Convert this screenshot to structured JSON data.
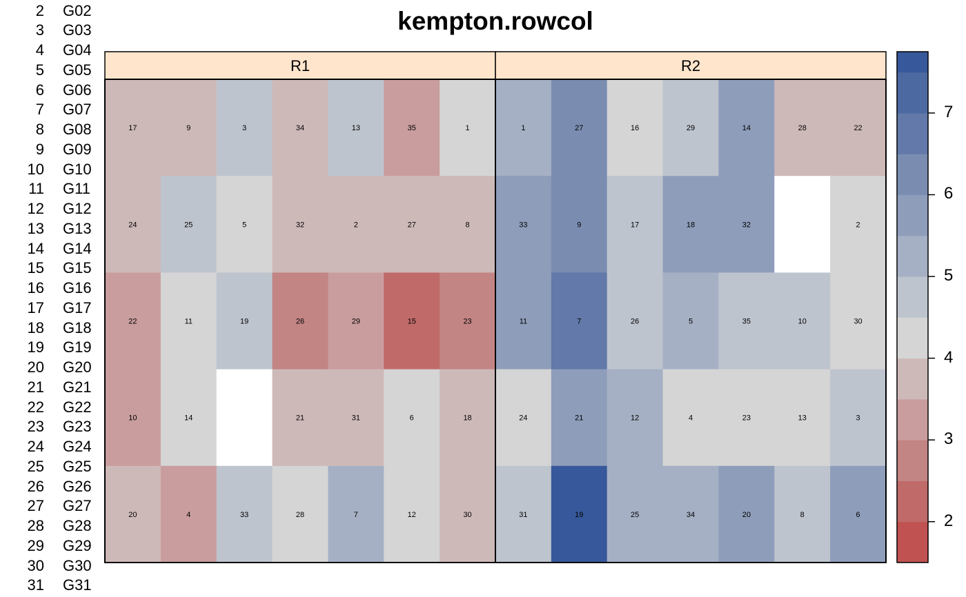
{
  "chart_data": {
    "type": "heatmap",
    "title": "kempton.rowcol",
    "panels": [
      {
        "name": "R1",
        "labels": [
          [
            "17",
            "9",
            "3",
            "34",
            "13",
            "35",
            "1"
          ],
          [
            "24",
            "25",
            "5",
            "32",
            "2",
            "27",
            "8"
          ],
          [
            "22",
            "11",
            "19",
            "26",
            "29",
            "15",
            "23"
          ],
          [
            "10",
            "14",
            "",
            "21",
            "31",
            "6",
            "18"
          ],
          [
            "20",
            "4",
            "33",
            "28",
            "7",
            "12",
            "30"
          ]
        ],
        "values": [
          [
            3.8,
            3.8,
            4.7,
            3.8,
            4.7,
            3.2,
            4.2
          ],
          [
            3.8,
            4.7,
            4.2,
            3.8,
            3.8,
            3.8,
            3.8
          ],
          [
            3.3,
            4.2,
            4.7,
            2.7,
            3.2,
            2.2,
            2.7
          ],
          [
            3.3,
            4.2,
            null,
            3.8,
            3.5,
            4.2,
            3.8
          ],
          [
            3.8,
            3.3,
            4.7,
            4.2,
            5.2,
            4.2,
            3.5
          ]
        ]
      },
      {
        "name": "R2",
        "labels": [
          [
            "1",
            "27",
            "16",
            "29",
            "14",
            "28",
            "22"
          ],
          [
            "33",
            "9",
            "17",
            "18",
            "32",
            "",
            "2"
          ],
          [
            "11",
            "7",
            "26",
            "5",
            "35",
            "10",
            "30"
          ],
          [
            "24",
            "21",
            "12",
            "4",
            "23",
            "13",
            "3"
          ],
          [
            "31",
            "19",
            "25",
            "34",
            "20",
            "8",
            "6"
          ]
        ],
        "values": [
          [
            5.2,
            6.2,
            4.2,
            4.7,
            5.7,
            3.8,
            3.8
          ],
          [
            5.7,
            6.2,
            4.7,
            5.7,
            5.7,
            null,
            4.2
          ],
          [
            5.7,
            6.7,
            4.7,
            5.2,
            4.7,
            4.7,
            4.2
          ],
          [
            4.2,
            5.7,
            5.2,
            4.2,
            4.2,
            4.2,
            4.7
          ],
          [
            4.7,
            7.7,
            5.2,
            5.2,
            5.7,
            4.7,
            5.7
          ]
        ]
      }
    ],
    "legend": {
      "ticks": [
        2,
        3,
        4,
        5,
        6,
        7
      ],
      "range": [
        1.5,
        7.75
      ],
      "breaks": [
        1.5,
        2.0,
        2.5,
        3.0,
        3.5,
        4.0,
        4.5,
        5.0,
        5.5,
        6.0,
        6.5,
        7.0,
        7.5,
        7.75
      ],
      "colors": [
        "#C05252",
        "#C06A6A",
        "#C38484",
        "#C99D9D",
        "#CEB9B9",
        "#D5D5D5",
        "#BEC4CE",
        "#A6B0C4",
        "#8E9DBA",
        "#7A8DB1",
        "#6279A9",
        "#4D69A2",
        "#37589A"
      ]
    },
    "missing_color": "#FFFFFF"
  },
  "row_labels": [
    {
      "num": "2",
      "name": "G02"
    },
    {
      "num": "3",
      "name": "G03"
    },
    {
      "num": "4",
      "name": "G04"
    },
    {
      "num": "5",
      "name": "G05"
    },
    {
      "num": "6",
      "name": "G06"
    },
    {
      "num": "7",
      "name": "G07"
    },
    {
      "num": "8",
      "name": "G08"
    },
    {
      "num": "9",
      "name": "G09"
    },
    {
      "num": "10",
      "name": "G10"
    },
    {
      "num": "11",
      "name": "G11"
    },
    {
      "num": "12",
      "name": "G12"
    },
    {
      "num": "13",
      "name": "G13"
    },
    {
      "num": "14",
      "name": "G14"
    },
    {
      "num": "15",
      "name": "G15"
    },
    {
      "num": "16",
      "name": "G16"
    },
    {
      "num": "17",
      "name": "G17"
    },
    {
      "num": "18",
      "name": "G18"
    },
    {
      "num": "19",
      "name": "G19"
    },
    {
      "num": "20",
      "name": "G20"
    },
    {
      "num": "21",
      "name": "G21"
    },
    {
      "num": "22",
      "name": "G22"
    },
    {
      "num": "23",
      "name": "G23"
    },
    {
      "num": "24",
      "name": "G24"
    },
    {
      "num": "25",
      "name": "G25"
    },
    {
      "num": "26",
      "name": "G26"
    },
    {
      "num": "27",
      "name": "G27"
    },
    {
      "num": "28",
      "name": "G28"
    },
    {
      "num": "29",
      "name": "G29"
    },
    {
      "num": "30",
      "name": "G30"
    },
    {
      "num": "31",
      "name": "G31"
    }
  ],
  "strip_color": "#FFE5CC"
}
